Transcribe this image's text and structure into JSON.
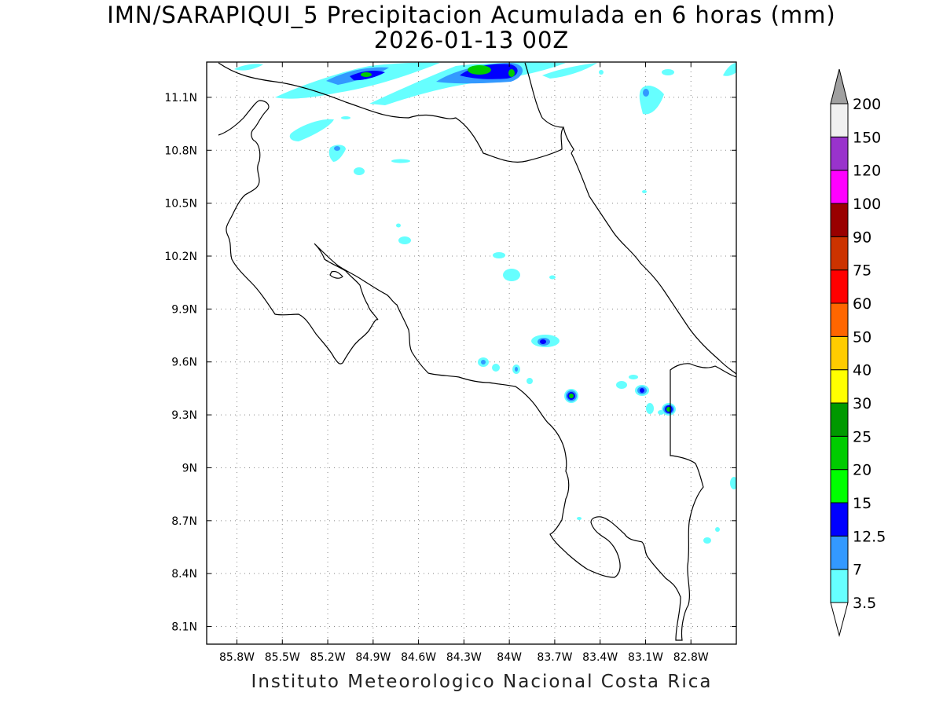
{
  "title": {
    "line1": "IMN/SARAPIQUI_5 Precipitacion Acumulada en 6 horas (mm)",
    "line2": "2026-01-13 00Z"
  },
  "credit": "Instituto Meteorologico Nacional Costa Rica",
  "map": {
    "lon_range": [
      -86.0,
      -82.5
    ],
    "lat_range": [
      8.0,
      11.3
    ],
    "x_ticks": [
      {
        "lon": -85.8,
        "label": "85.8W"
      },
      {
        "lon": -85.5,
        "label": "85.5W"
      },
      {
        "lon": -85.2,
        "label": "85.2W"
      },
      {
        "lon": -84.9,
        "label": "84.9W"
      },
      {
        "lon": -84.6,
        "label": "84.6W"
      },
      {
        "lon": -84.3,
        "label": "84.3W"
      },
      {
        "lon": -84.0,
        "label": "84W"
      },
      {
        "lon": -83.7,
        "label": "83.7W"
      },
      {
        "lon": -83.4,
        "label": "83.4W"
      },
      {
        "lon": -83.1,
        "label": "83.1W"
      },
      {
        "lon": -82.8,
        "label": "82.8W"
      }
    ],
    "y_ticks": [
      {
        "lat": 11.1,
        "label": "11.1N"
      },
      {
        "lat": 10.8,
        "label": "10.8N"
      },
      {
        "lat": 10.5,
        "label": "10.5N"
      },
      {
        "lat": 10.2,
        "label": "10.2N"
      },
      {
        "lat": 9.9,
        "label": "9.9N"
      },
      {
        "lat": 9.6,
        "label": "9.6N"
      },
      {
        "lat": 9.3,
        "label": "9.3N"
      },
      {
        "lat": 9.0,
        "label": "9N"
      },
      {
        "lat": 8.7,
        "label": "8.7N"
      },
      {
        "lat": 8.4,
        "label": "8.4N"
      },
      {
        "lat": 8.1,
        "label": "8.1N"
      }
    ],
    "grid": true
  },
  "colorbar": {
    "levels": [
      {
        "label": "3.5",
        "color": "#66ffff"
      },
      {
        "label": "7",
        "color": "#3399ff"
      },
      {
        "label": "12.5",
        "color": "#0000ff"
      },
      {
        "label": "15",
        "color": "#00ff00"
      },
      {
        "label": "20",
        "color": "#00cc00"
      },
      {
        "label": "25",
        "color": "#009900"
      },
      {
        "label": "30",
        "color": "#ffff00"
      },
      {
        "label": "40",
        "color": "#ffcc00"
      },
      {
        "label": "50",
        "color": "#ff6600"
      },
      {
        "label": "60",
        "color": "#ff0000"
      },
      {
        "label": "75",
        "color": "#cc3300"
      },
      {
        "label": "90",
        "color": "#990000"
      },
      {
        "label": "100",
        "color": "#ff00ff"
      },
      {
        "label": "120",
        "color": "#9933cc"
      },
      {
        "label": "150",
        "color": "#f0f0f0"
      },
      {
        "label": "200",
        "color": "#a0a0a0"
      }
    ],
    "bottom_triangle_color": "#ffffff",
    "top_triangle_color": "#a0a0a0"
  },
  "precip_cells": [
    {
      "lon": -84.95,
      "lat": 11.2,
      "mm": 12.5
    },
    {
      "lon": -84.9,
      "lat": 11.22,
      "mm": 20
    },
    {
      "lon": -84.2,
      "lat": 11.24,
      "mm": 25
    },
    {
      "lon": -84.0,
      "lat": 11.22,
      "mm": 15
    },
    {
      "lon": -83.1,
      "lat": 11.1,
      "mm": 7
    },
    {
      "lon": -85.3,
      "lat": 10.95,
      "mm": 3.5
    },
    {
      "lon": -85.1,
      "lat": 10.8,
      "mm": 7
    },
    {
      "lon": -84.95,
      "lat": 10.68,
      "mm": 3.5
    },
    {
      "lon": -84.6,
      "lat": 10.35,
      "mm": 3.5
    },
    {
      "lon": -84.0,
      "lat": 10.2,
      "mm": 3.5
    },
    {
      "lon": -83.98,
      "lat": 10.08,
      "mm": 3.5
    },
    {
      "lon": -83.75,
      "lat": 9.72,
      "mm": 12.5
    },
    {
      "lon": -84.17,
      "lat": 9.6,
      "mm": 7
    },
    {
      "lon": -84.1,
      "lat": 9.56,
      "mm": 3.5
    },
    {
      "lon": -83.95,
      "lat": 9.55,
      "mm": 7
    },
    {
      "lon": -83.57,
      "lat": 9.41,
      "mm": 25
    },
    {
      "lon": -83.12,
      "lat": 9.44,
      "mm": 12.5
    },
    {
      "lon": -82.92,
      "lat": 9.33,
      "mm": 25
    },
    {
      "lon": -83.2,
      "lat": 9.5,
      "mm": 3.5
    },
    {
      "lon": -82.52,
      "lat": 8.9,
      "mm": 3.5
    },
    {
      "lon": -82.65,
      "lat": 8.6,
      "mm": 3.5
    }
  ]
}
